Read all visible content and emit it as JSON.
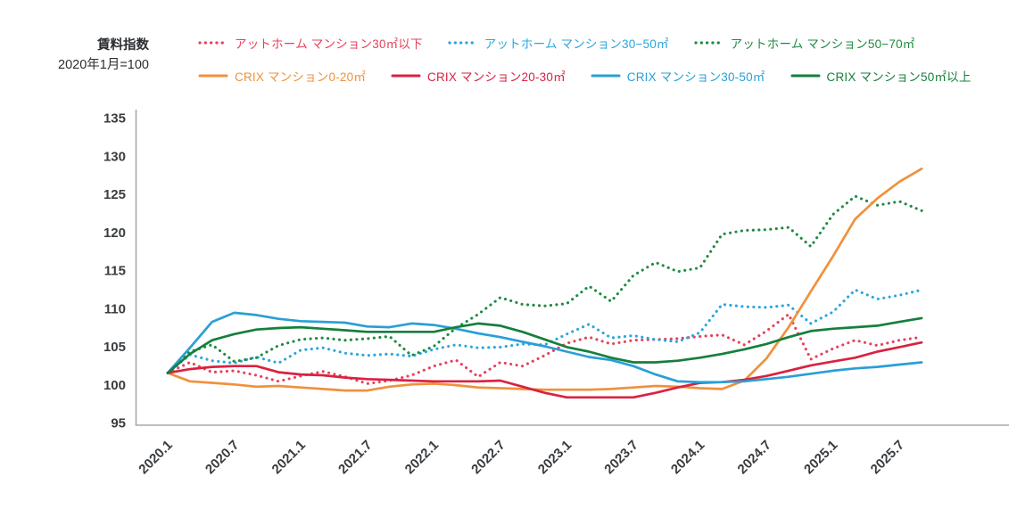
{
  "header": {
    "title_line1": "賃料指数",
    "title_line2": "2020年1月=100"
  },
  "axis": {
    "line_color": "#a8a8a8",
    "label_color": "#3a3d40"
  },
  "chart_data": {
    "type": "line",
    "title": "賃料指数",
    "baseline_note": "2020年1月=100",
    "grid": false,
    "legend_position": "top",
    "ylim": [
      95,
      135
    ],
    "y_ticks": [
      95,
      100,
      105,
      110,
      115,
      120,
      125,
      130,
      135
    ],
    "x_start_label": "2020.1",
    "x_step_months_between_points": 2,
    "x_tick_every_months": 6,
    "x_tick_labels": [
      "2020.1",
      "2020.7",
      "2021.1",
      "2021.7",
      "2022.1",
      "2022.7",
      "2023.1",
      "2023.7",
      "2024.1",
      "2024.7",
      "2025.1",
      "2025.7"
    ],
    "series": [
      {
        "name": "アットホーム マンション30㎡以下",
        "style": "dotted",
        "color": "#e8405a",
        "values": [
          101.5,
          102.9,
          101.6,
          101.8,
          101.2,
          100.4,
          101.1,
          101.7,
          101.0,
          100.1,
          100.5,
          101.2,
          102.4,
          103.2,
          101.0,
          102.9,
          102.4,
          103.8,
          105.4,
          106.2,
          105.3,
          105.8,
          105.9,
          106.0,
          106.3,
          106.5,
          105.2,
          107.0,
          109.2,
          103.3,
          104.7,
          105.8,
          105.1,
          105.8,
          106.2
        ]
      },
      {
        "name": "アットホーム マンション30−50㎡",
        "style": "dotted",
        "color": "#2aa6de",
        "values": [
          101.5,
          103.9,
          103.1,
          102.8,
          103.6,
          102.8,
          104.5,
          104.8,
          104.1,
          103.8,
          104.0,
          103.7,
          104.6,
          105.2,
          104.8,
          104.9,
          105.3,
          105.2,
          106.6,
          107.9,
          106.1,
          106.4,
          105.9,
          105.6,
          106.8,
          110.5,
          110.2,
          110.1,
          110.4,
          108.0,
          109.5,
          112.4,
          111.2,
          111.7,
          112.4
        ]
      },
      {
        "name": "アットホーム マンション50−70㎡",
        "style": "dotted",
        "color": "#1e8b41",
        "values": [
          101.5,
          104.3,
          105.2,
          103.0,
          103.5,
          105.1,
          105.9,
          106.1,
          105.8,
          106.0,
          106.3,
          103.8,
          105.0,
          107.4,
          109.2,
          111.4,
          110.5,
          110.3,
          110.6,
          112.9,
          110.9,
          114.3,
          116.0,
          114.8,
          115.3,
          119.7,
          120.2,
          120.3,
          120.6,
          118.1,
          122.3,
          124.7,
          123.5,
          124.0,
          122.8
        ]
      },
      {
        "name": "CRIX マンション0-20㎡",
        "style": "solid",
        "color": "#f0913c",
        "values": [
          101.5,
          100.4,
          100.2,
          100.0,
          99.7,
          99.8,
          99.6,
          99.4,
          99.2,
          99.2,
          99.7,
          100.0,
          100.1,
          99.9,
          99.6,
          99.5,
          99.4,
          99.3,
          99.3,
          99.3,
          99.4,
          99.6,
          99.8,
          99.7,
          99.5,
          99.4,
          100.5,
          103.4,
          107.5,
          112.2,
          116.8,
          121.7,
          124.4,
          126.6,
          128.3
        ]
      },
      {
        "name": "CRIX マンション20-30㎡",
        "style": "solid",
        "color": "#da2140",
        "values": [
          101.5,
          102.0,
          102.3,
          102.4,
          102.4,
          101.6,
          101.3,
          101.2,
          100.9,
          100.7,
          100.6,
          100.5,
          100.4,
          100.4,
          100.4,
          100.5,
          99.7,
          98.9,
          98.3,
          98.3,
          98.3,
          98.3,
          98.9,
          99.6,
          100.2,
          100.3,
          100.6,
          101.1,
          101.8,
          102.5,
          103.0,
          103.5,
          104.3,
          104.9,
          105.5
        ]
      },
      {
        "name": "CRIX マンション30-50㎡",
        "style": "solid",
        "color": "#2a9fd6",
        "values": [
          101.5,
          104.8,
          108.2,
          109.4,
          109.1,
          108.6,
          108.3,
          108.2,
          108.1,
          107.6,
          107.5,
          108.0,
          107.8,
          107.3,
          106.7,
          106.2,
          105.6,
          105.0,
          104.3,
          103.6,
          103.2,
          102.4,
          101.3,
          100.4,
          100.3,
          100.3,
          100.4,
          100.7,
          101.0,
          101.4,
          101.8,
          102.1,
          102.3,
          102.6,
          102.9
        ]
      },
      {
        "name": "CRIX マンション50㎡以上",
        "style": "solid",
        "color": "#157f3c",
        "values": [
          101.5,
          104.0,
          105.8,
          106.6,
          107.2,
          107.4,
          107.5,
          107.3,
          107.1,
          106.9,
          106.9,
          106.9,
          106.9,
          107.5,
          108.0,
          107.7,
          106.9,
          105.9,
          104.9,
          104.3,
          103.5,
          102.9,
          102.9,
          103.1,
          103.5,
          104.0,
          104.6,
          105.3,
          106.2,
          107.0,
          107.3,
          107.5,
          107.7,
          108.2,
          108.7
        ]
      }
    ]
  }
}
